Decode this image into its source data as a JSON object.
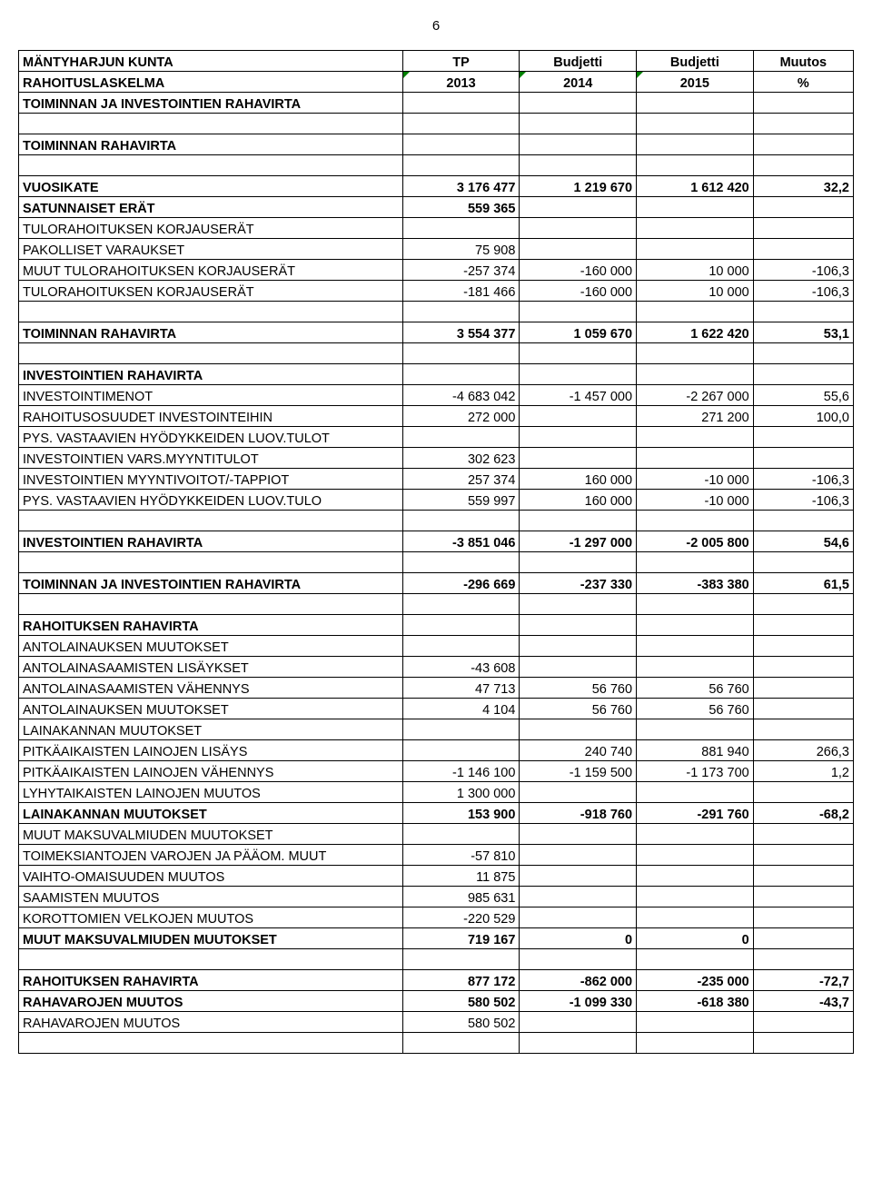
{
  "page_number": "6",
  "headers": {
    "h1": "MÄNTYHARJUN KUNTA",
    "h2": "RAHOITUSLASKELMA",
    "tp": "TP",
    "bud": "Budjetti",
    "muutos": "Muutos",
    "y2013": "2013",
    "y2014": "2014",
    "y2015": "2015",
    "pct": "%"
  },
  "rows": [
    {
      "label": "TOIMINNAN JA INVESTOINTIEN RAHAVIRTA",
      "bold": true,
      "v": [
        "",
        "",
        "",
        ""
      ]
    },
    {
      "blank": true
    },
    {
      "label": "TOIMINNAN RAHAVIRTA",
      "bold": true,
      "v": [
        "",
        "",
        "",
        ""
      ]
    },
    {
      "blank": true
    },
    {
      "label": "VUOSIKATE",
      "bold": true,
      "v": [
        "3 176 477",
        "1 219 670",
        "1 612 420",
        "32,2"
      ]
    },
    {
      "label": "SATUNNAISET ERÄT",
      "bold": true,
      "v": [
        "559 365",
        "",
        "",
        ""
      ]
    },
    {
      "label": "TULORAHOITUKSEN KORJAUSERÄT",
      "bold": false,
      "v": [
        "",
        "",
        "",
        ""
      ]
    },
    {
      "label": "PAKOLLISET VARAUKSET",
      "bold": false,
      "v": [
        "75 908",
        "",
        "",
        ""
      ]
    },
    {
      "label": "MUUT TULORAHOITUKSEN KORJAUSERÄT",
      "bold": false,
      "v": [
        "-257 374",
        "-160 000",
        "10 000",
        "-106,3"
      ]
    },
    {
      "label": "TULORAHOITUKSEN KORJAUSERÄT",
      "bold": false,
      "v": [
        "-181 466",
        "-160 000",
        "10 000",
        "-106,3"
      ]
    },
    {
      "blank": true
    },
    {
      "label": "TOIMINNAN RAHAVIRTA",
      "bold": true,
      "v": [
        "3 554 377",
        "1 059 670",
        "1 622 420",
        "53,1"
      ]
    },
    {
      "blank": true
    },
    {
      "label": "INVESTOINTIEN RAHAVIRTA",
      "bold": true,
      "v": [
        "",
        "",
        "",
        ""
      ]
    },
    {
      "label": "INVESTOINTIMENOT",
      "bold": false,
      "v": [
        "-4 683 042",
        "-1 457 000",
        "-2 267 000",
        "55,6"
      ]
    },
    {
      "label": "RAHOITUSOSUUDET INVESTOINTEIHIN",
      "bold": false,
      "v": [
        "272 000",
        "",
        "271 200",
        "100,0"
      ]
    },
    {
      "label": "PYS. VASTAAVIEN HYÖDYKKEIDEN LUOV.TULOT",
      "bold": false,
      "v": [
        "",
        "",
        "",
        ""
      ]
    },
    {
      "label": "INVESTOINTIEN  VARS.MYYNTITULOT",
      "bold": false,
      "v": [
        "302 623",
        "",
        "",
        ""
      ]
    },
    {
      "label": "INVESTOINTIEN  MYYNTIVOITOT/-TAPPIOT",
      "bold": false,
      "v": [
        "257 374",
        "160 000",
        "-10 000",
        "-106,3"
      ]
    },
    {
      "label": "PYS. VASTAAVIEN HYÖDYKKEIDEN LUOV.TULO",
      "bold": false,
      "v": [
        "559 997",
        "160 000",
        "-10 000",
        "-106,3"
      ]
    },
    {
      "blank": true
    },
    {
      "label": "INVESTOINTIEN RAHAVIRTA",
      "bold": true,
      "v": [
        "-3 851 046",
        "-1 297 000",
        "-2 005 800",
        "54,6"
      ]
    },
    {
      "blank": true
    },
    {
      "label": "TOIMINNAN JA INVESTOINTIEN RAHAVIRTA",
      "bold": true,
      "v": [
        "-296 669",
        "-237 330",
        "-383 380",
        "61,5"
      ]
    },
    {
      "blank": true
    },
    {
      "label": "RAHOITUKSEN RAHAVIRTA",
      "bold": true,
      "v": [
        "",
        "",
        "",
        ""
      ]
    },
    {
      "label": "ANTOLAINAUKSEN MUUTOKSET",
      "bold": false,
      "v": [
        "",
        "",
        "",
        ""
      ]
    },
    {
      "label": "ANTOLAINASAAMISTEN LISÄYKSET",
      "bold": false,
      "v": [
        "-43 608",
        "",
        "",
        ""
      ]
    },
    {
      "label": "ANTOLAINASAAMISTEN VÄHENNYS",
      "bold": false,
      "v": [
        "47 713",
        "56 760",
        "56 760",
        ""
      ]
    },
    {
      "label": "ANTOLAINAUKSEN MUUTOKSET",
      "bold": false,
      "v": [
        "4 104",
        "56 760",
        "56 760",
        ""
      ]
    },
    {
      "label": "LAINAKANNAN MUUTOKSET",
      "bold": false,
      "v": [
        "",
        "",
        "",
        ""
      ]
    },
    {
      "label": "PITKÄAIKAISTEN LAINOJEN LISÄYS",
      "bold": false,
      "v": [
        "",
        "240 740",
        "881 940",
        "266,3"
      ]
    },
    {
      "label": "PITKÄAIKAISTEN LAINOJEN VÄHENNYS",
      "bold": false,
      "v": [
        "-1 146 100",
        "-1 159 500",
        "-1 173 700",
        "1,2"
      ]
    },
    {
      "label": "LYHYTAIKAISTEN LAINOJEN MUUTOS",
      "bold": false,
      "v": [
        "1 300 000",
        "",
        "",
        ""
      ]
    },
    {
      "label": "LAINAKANNAN MUUTOKSET",
      "bold": true,
      "v": [
        "153 900",
        "-918 760",
        "-291 760",
        "-68,2"
      ]
    },
    {
      "label": "MUUT MAKSUVALMIUDEN MUUTOKSET",
      "bold": false,
      "v": [
        "",
        "",
        "",
        ""
      ]
    },
    {
      "label": "TOIMEKSIANTOJEN VAROJEN JA PÄÄOM. MUUT",
      "bold": false,
      "v": [
        "-57 810",
        "",
        "",
        ""
      ]
    },
    {
      "label": "VAIHTO-OMAISUUDEN MUUTOS",
      "bold": false,
      "v": [
        "11 875",
        "",
        "",
        ""
      ]
    },
    {
      "label": "SAAMISTEN MUUTOS",
      "bold": false,
      "v": [
        "985 631",
        "",
        "",
        ""
      ]
    },
    {
      "label": "KOROTTOMIEN VELKOJEN MUUTOS",
      "bold": false,
      "v": [
        "-220 529",
        "",
        "",
        ""
      ]
    },
    {
      "label": "MUUT MAKSUVALMIUDEN MUUTOKSET",
      "bold": true,
      "v": [
        "719 167",
        "0",
        "0",
        ""
      ]
    },
    {
      "blank": true
    },
    {
      "label": "RAHOITUKSEN RAHAVIRTA",
      "bold": true,
      "v": [
        "877 172",
        "-862 000",
        "-235 000",
        "-72,7"
      ]
    },
    {
      "label": "RAHAVAROJEN MUUTOS",
      "bold": true,
      "v": [
        "580 502",
        "-1 099 330",
        "-618 380",
        "-43,7"
      ]
    },
    {
      "label": "RAHAVAROJEN MUUTOS",
      "bold": false,
      "v": [
        "580 502",
        "",
        "",
        ""
      ]
    },
    {
      "blank": true
    }
  ]
}
